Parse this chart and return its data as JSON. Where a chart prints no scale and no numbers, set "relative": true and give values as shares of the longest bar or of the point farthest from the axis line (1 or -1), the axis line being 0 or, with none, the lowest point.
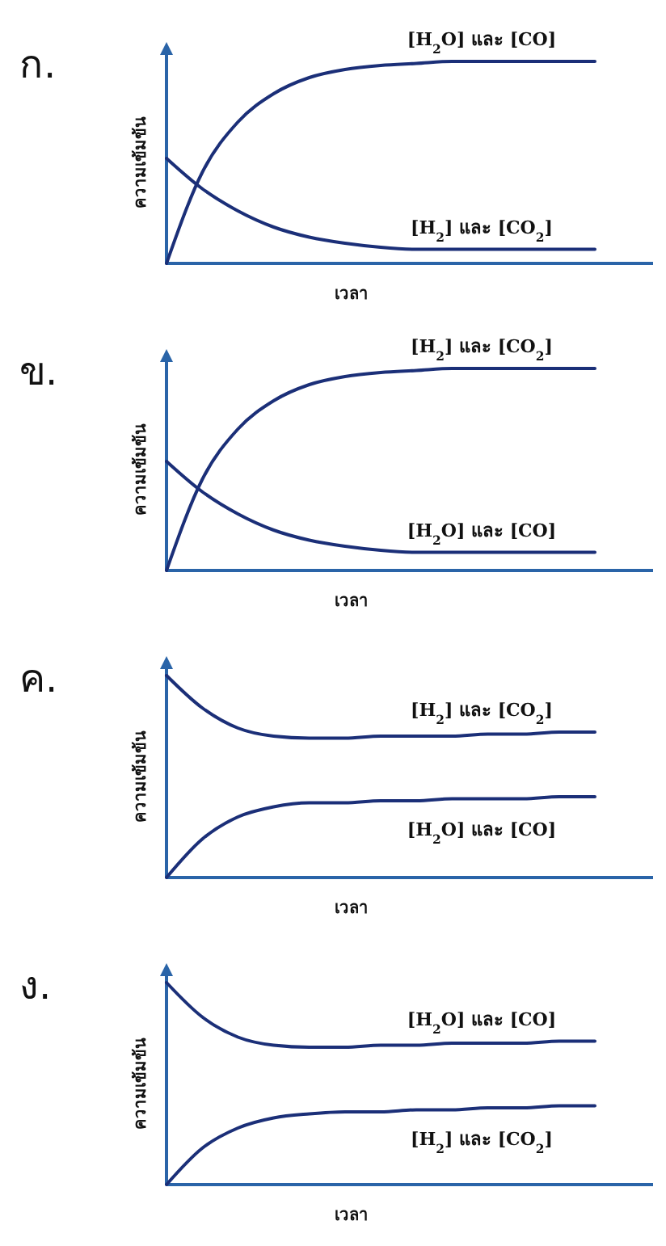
{
  "chart_data": [
    {
      "type": "line",
      "title": "ก.",
      "xlabel": "เวลา",
      "ylabel": "ความเข้มข้น",
      "relative": true,
      "categories": [
        null,
        null,
        null,
        null,
        null,
        null,
        null,
        null,
        null,
        null,
        null,
        null,
        null
      ],
      "series": [
        {
          "name": "[H$_{2}$O] และ [CO]",
          "color": "#1b2f78",
          "values": [
            0,
            0.45,
            0.7,
            0.84,
            0.92,
            0.96,
            0.98,
            0.99,
            1,
            1,
            1,
            1,
            1
          ]
        },
        {
          "name": "[H$_{2}$] และ [CO$_{2}$]",
          "color": "#1b2f78",
          "values": [
            0.52,
            0.37,
            0.26,
            0.18,
            0.13,
            0.1,
            0.08,
            0.07,
            0.07,
            0.07,
            0.07,
            0.07,
            0.07
          ]
        }
      ]
    },
    {
      "type": "line",
      "title": "ข.",
      "xlabel": "เวลา",
      "ylabel": "ความเข้มข้น",
      "relative": true,
      "categories": [
        null,
        null,
        null,
        null,
        null,
        null,
        null,
        null,
        null,
        null,
        null,
        null,
        null
      ],
      "series": [
        {
          "name": "[H$_{2}$] และ [CO$_{2}$]",
          "color": "#1b2f78",
          "values": [
            0,
            0.45,
            0.7,
            0.84,
            0.92,
            0.96,
            0.98,
            0.99,
            1,
            1,
            1,
            1,
            1
          ]
        },
        {
          "name": "[H$_{2}$O] และ [CO]",
          "color": "#1b2f78",
          "values": [
            0.54,
            0.39,
            0.28,
            0.2,
            0.15,
            0.12,
            0.1,
            0.09,
            0.09,
            0.09,
            0.09,
            0.09,
            0.09
          ]
        }
      ]
    },
    {
      "type": "line",
      "title": "ค.",
      "xlabel": "เวลา",
      "ylabel": "ความเข้มข้น",
      "relative": true,
      "categories": [
        null,
        null,
        null,
        null,
        null,
        null,
        null,
        null,
        null,
        null,
        null,
        null,
        null
      ],
      "series": [
        {
          "name": "[H$_{2}$] และ [CO$_{2}$]",
          "color": "#1b2f78",
          "values": [
            1,
            0.84,
            0.74,
            0.7,
            0.69,
            0.69,
            0.7,
            0.7,
            0.7,
            0.71,
            0.71,
            0.72,
            0.72
          ]
        },
        {
          "name": "[H$_{2}$O] และ [CO]",
          "color": "#1b2f78",
          "values": [
            0,
            0.19,
            0.3,
            0.35,
            0.37,
            0.37,
            0.38,
            0.38,
            0.39,
            0.39,
            0.39,
            0.4,
            0.4
          ]
        }
      ]
    },
    {
      "type": "line",
      "title": "ง.",
      "xlabel": "เวลา",
      "ylabel": "ความเข้มข้น",
      "relative": true,
      "categories": [
        null,
        null,
        null,
        null,
        null,
        null,
        null,
        null,
        null,
        null,
        null,
        null,
        null
      ],
      "series": [
        {
          "name": "[H$_{2}$O] และ [CO]",
          "color": "#1b2f78",
          "values": [
            1,
            0.83,
            0.73,
            0.69,
            0.68,
            0.68,
            0.69,
            0.69,
            0.7,
            0.7,
            0.7,
            0.71,
            0.71
          ]
        },
        {
          "name": "[H$_{2}$] และ [CO$_{2}$]",
          "color": "#1b2f78",
          "values": [
            0,
            0.18,
            0.28,
            0.33,
            0.35,
            0.36,
            0.36,
            0.37,
            0.37,
            0.38,
            0.38,
            0.39,
            0.39
          ]
        }
      ]
    }
  ]
}
